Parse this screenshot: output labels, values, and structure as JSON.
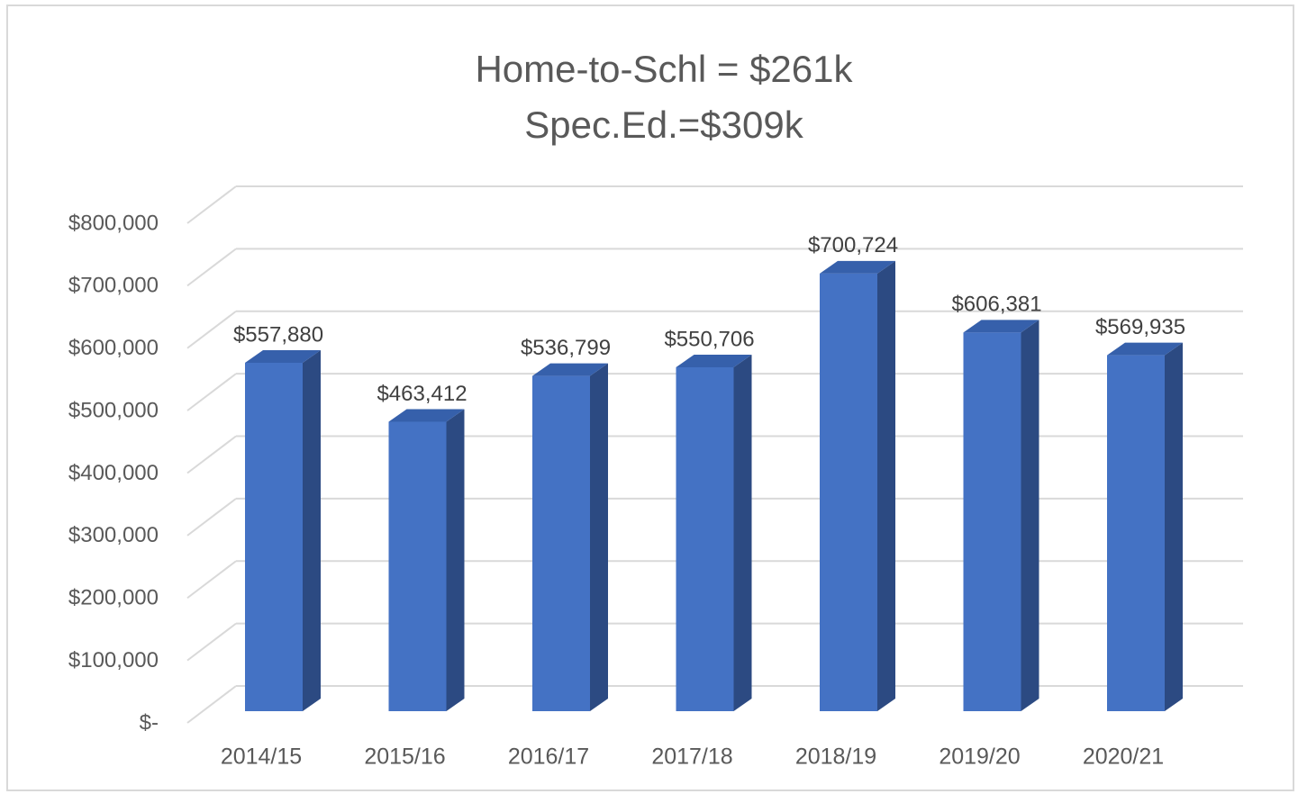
{
  "chart_data": {
    "type": "bar3d",
    "title": "Home-to-Schl = $261k",
    "subtitle": "Spec.Ed.=$309k",
    "categories": [
      "2014/15",
      "2015/16",
      "2016/17",
      "2017/18",
      "2018/19",
      "2019/20",
      "2020/21"
    ],
    "values": [
      557880,
      463412,
      536799,
      550706,
      700724,
      606381,
      569935
    ],
    "value_labels": [
      "$557,880",
      "$463,412",
      "$536,799",
      "$550,706",
      "$700,724",
      "$606,381",
      "$569,935"
    ],
    "color": "#4472c4",
    "ylim": [
      0,
      800000
    ],
    "yticks": [
      {
        "value": 0,
        "label": "$-"
      },
      {
        "value": 100000,
        "label": "$100,000"
      },
      {
        "value": 200000,
        "label": "$200,000"
      },
      {
        "value": 300000,
        "label": "$300,000"
      },
      {
        "value": 400000,
        "label": "$400,000"
      },
      {
        "value": 500000,
        "label": "$500,000"
      },
      {
        "value": 600000,
        "label": "$600,000"
      },
      {
        "value": 700000,
        "label": "$700,000"
      },
      {
        "value": 800000,
        "label": "$800,000"
      }
    ],
    "grid": true
  }
}
